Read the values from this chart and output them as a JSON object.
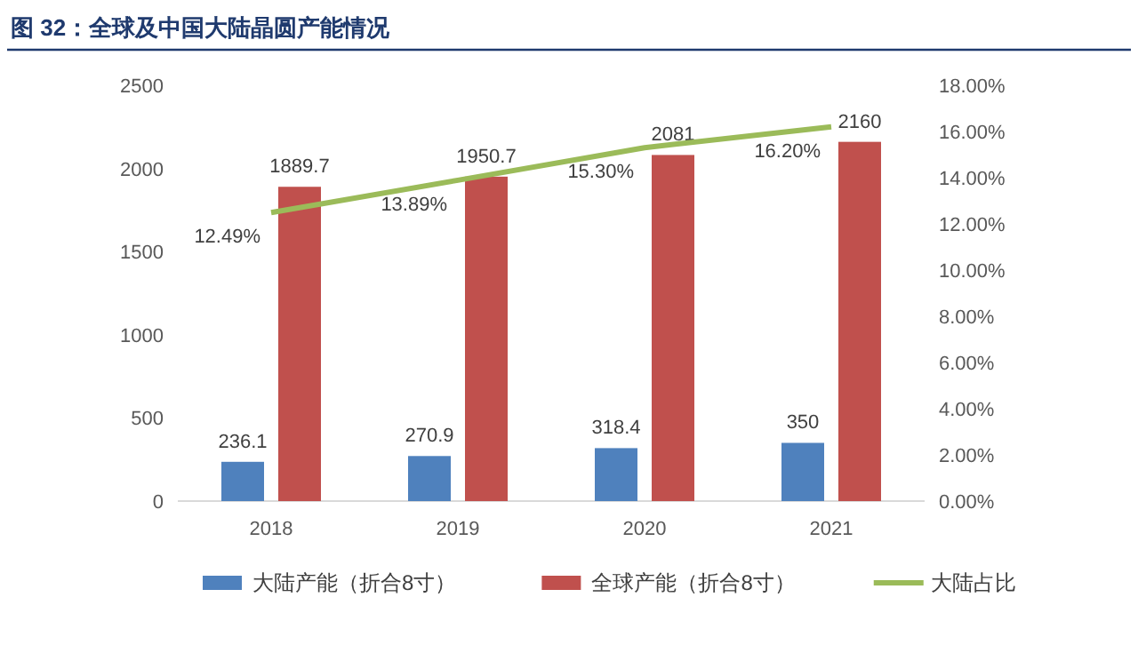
{
  "chart_data": {
    "type": "bar",
    "title": "图 32：全球及中国大陆晶圆产能情况",
    "categories": [
      "2018",
      "2019",
      "2020",
      "2021"
    ],
    "series": [
      {
        "name": "大陆产能（折合8寸）",
        "color": "#4f81bd",
        "values": [
          236.1,
          270.9,
          318.4,
          350
        ],
        "value_labels": [
          "236.1",
          "270.9",
          "318.4",
          "350"
        ]
      },
      {
        "name": "全球产能（折合8寸）",
        "color": "#c0504d",
        "values": [
          1889.7,
          1950.7,
          2081,
          2160
        ],
        "value_labels": [
          "1889.7",
          "1950.7",
          "2081",
          "2160"
        ]
      },
      {
        "name": "大陆占比",
        "type": "line",
        "axis": "y2",
        "color": "#9bbb59",
        "values": [
          12.49,
          13.89,
          15.3,
          16.2
        ],
        "value_labels": [
          "12.49%",
          "13.89%",
          "15.30%",
          "16.20%"
        ]
      }
    ],
    "ylim": [
      0,
      2500
    ],
    "yticks": [
      0,
      500,
      1000,
      1500,
      2000,
      2500
    ],
    "y2lim": [
      0,
      18
    ],
    "y2ticks": [
      {
        "value": 0,
        "label": "0.00%"
      },
      {
        "value": 2,
        "label": "2.00%"
      },
      {
        "value": 4,
        "label": "4.00%"
      },
      {
        "value": 6,
        "label": "6.00%"
      },
      {
        "value": 8,
        "label": "8.00%"
      },
      {
        "value": 10,
        "label": "10.00%"
      },
      {
        "value": 12,
        "label": "12.00%"
      },
      {
        "value": 14,
        "label": "14.00%"
      },
      {
        "value": 16,
        "label": "16.00%"
      },
      {
        "value": 18,
        "label": "18.00%"
      }
    ],
    "legend": "bottom",
    "grid": false,
    "marker": "none"
  }
}
